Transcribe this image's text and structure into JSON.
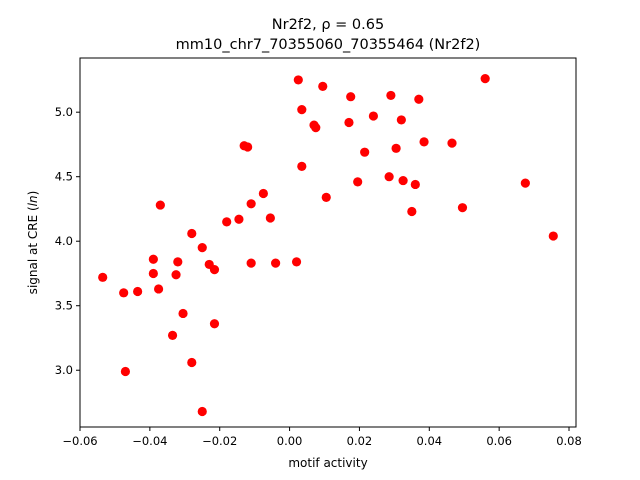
{
  "chart_data": {
    "type": "scatter",
    "title": "Nr2f2, ρ = 0.65",
    "subtitle": "mm10_chr7_70355060_70355464 (Nr2f2)",
    "xlabel": "motif activity",
    "ylabel": "signal at CRE (ln)",
    "xlim": [
      -0.06,
      0.082
    ],
    "ylim": [
      2.56,
      5.42
    ],
    "xticks": [
      -0.06,
      -0.04,
      -0.02,
      0.0,
      0.02,
      0.04,
      0.06,
      0.08
    ],
    "xtick_labels": [
      "−0.06",
      "−0.04",
      "−0.02",
      "0.00",
      "0.02",
      "0.04",
      "0.06",
      "0.08"
    ],
    "yticks": [
      3.0,
      3.5,
      4.0,
      4.5,
      5.0
    ],
    "ytick_labels": [
      "3.0",
      "3.5",
      "4.0",
      "4.5",
      "5.0"
    ],
    "grid": false,
    "legend": "none",
    "marker_color": "#ff0000",
    "points": [
      {
        "x": -0.0535,
        "y": 3.72
      },
      {
        "x": -0.0475,
        "y": 3.6
      },
      {
        "x": -0.047,
        "y": 2.99
      },
      {
        "x": -0.0435,
        "y": 3.61
      },
      {
        "x": -0.039,
        "y": 3.86
      },
      {
        "x": -0.039,
        "y": 3.75
      },
      {
        "x": -0.0375,
        "y": 3.63
      },
      {
        "x": -0.037,
        "y": 4.28
      },
      {
        "x": -0.0335,
        "y": 3.27
      },
      {
        "x": -0.0325,
        "y": 3.74
      },
      {
        "x": -0.032,
        "y": 3.84
      },
      {
        "x": -0.0305,
        "y": 3.44
      },
      {
        "x": -0.028,
        "y": 4.06
      },
      {
        "x": -0.028,
        "y": 3.06
      },
      {
        "x": -0.025,
        "y": 2.68
      },
      {
        "x": -0.025,
        "y": 3.95
      },
      {
        "x": -0.023,
        "y": 3.82
      },
      {
        "x": -0.0215,
        "y": 3.78
      },
      {
        "x": -0.0215,
        "y": 3.36
      },
      {
        "x": -0.018,
        "y": 4.15
      },
      {
        "x": -0.0145,
        "y": 4.17
      },
      {
        "x": -0.013,
        "y": 4.74
      },
      {
        "x": -0.012,
        "y": 4.73
      },
      {
        "x": -0.011,
        "y": 4.29
      },
      {
        "x": -0.011,
        "y": 3.83
      },
      {
        "x": -0.0075,
        "y": 4.37
      },
      {
        "x": -0.0055,
        "y": 4.18
      },
      {
        "x": -0.004,
        "y": 3.83
      },
      {
        "x": 0.002,
        "y": 3.84
      },
      {
        "x": 0.0025,
        "y": 5.25
      },
      {
        "x": 0.0035,
        "y": 5.02
      },
      {
        "x": 0.0035,
        "y": 4.58
      },
      {
        "x": 0.007,
        "y": 4.9
      },
      {
        "x": 0.0075,
        "y": 4.88
      },
      {
        "x": 0.0095,
        "y": 5.2
      },
      {
        "x": 0.0105,
        "y": 4.34
      },
      {
        "x": 0.017,
        "y": 4.92
      },
      {
        "x": 0.0175,
        "y": 5.12
      },
      {
        "x": 0.0195,
        "y": 4.46
      },
      {
        "x": 0.0215,
        "y": 4.69
      },
      {
        "x": 0.024,
        "y": 4.97
      },
      {
        "x": 0.0285,
        "y": 4.5
      },
      {
        "x": 0.029,
        "y": 5.13
      },
      {
        "x": 0.0305,
        "y": 4.72
      },
      {
        "x": 0.032,
        "y": 4.94
      },
      {
        "x": 0.0325,
        "y": 4.47
      },
      {
        "x": 0.035,
        "y": 4.23
      },
      {
        "x": 0.036,
        "y": 4.44
      },
      {
        "x": 0.037,
        "y": 5.1
      },
      {
        "x": 0.0385,
        "y": 4.77
      },
      {
        "x": 0.0465,
        "y": 4.76
      },
      {
        "x": 0.0495,
        "y": 4.26
      },
      {
        "x": 0.056,
        "y": 5.26
      },
      {
        "x": 0.0675,
        "y": 4.45
      },
      {
        "x": 0.0755,
        "y": 4.04
      }
    ]
  }
}
